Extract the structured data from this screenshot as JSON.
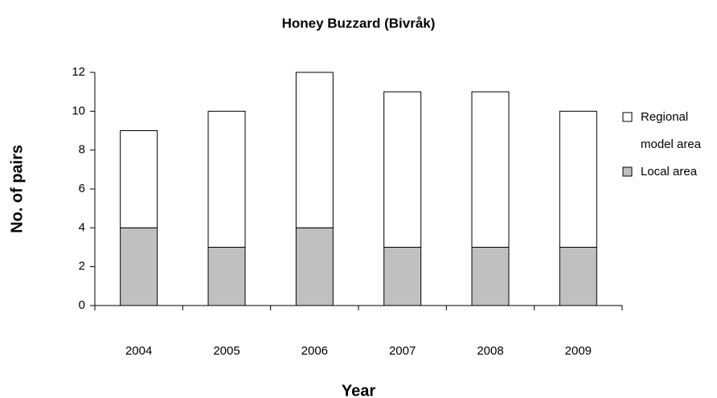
{
  "chart_data": {
    "type": "stacked_bar",
    "title": "Honey Buzzard (Bivråk)",
    "x_label": "Year",
    "y_label": "No. of pairs",
    "categories": [
      "2004",
      "2005",
      "2006",
      "2007",
      "2008",
      "2009"
    ],
    "series": [
      {
        "name": "Local area",
        "color": "#c0c0c0",
        "values": [
          4,
          3,
          4,
          3,
          3,
          3
        ]
      },
      {
        "name": "Regional model area",
        "color": "#ffffff",
        "values": [
          5,
          7,
          8,
          8,
          8,
          7
        ]
      }
    ],
    "ylim": [
      0,
      12
    ],
    "yticks": [
      0,
      2,
      4,
      6,
      8,
      10,
      12
    ],
    "legend": "right"
  }
}
